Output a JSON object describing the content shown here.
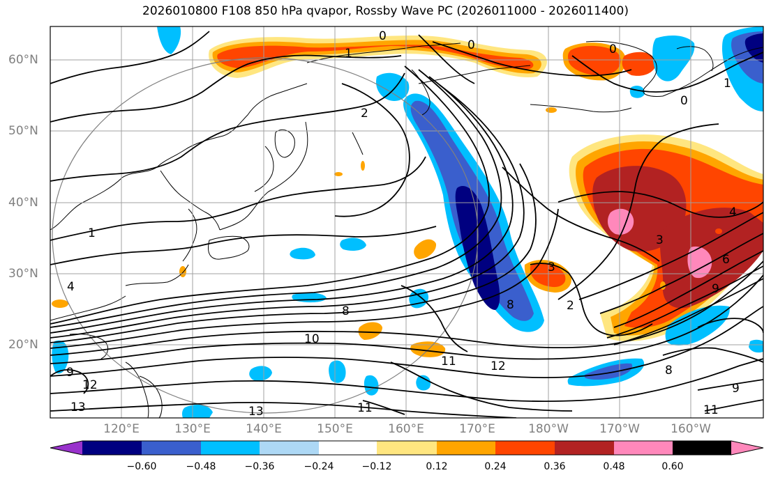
{
  "title": "2026010800 F108 850 hPa qvapor, Rossby Wave PC (2026011000 - 2026011400)",
  "latitude_labels": [
    "60°N",
    "50°N",
    "40°N",
    "30°N",
    "20°N"
  ],
  "longitude_labels": [
    "120°E",
    "130°E",
    "140°E",
    "150°E",
    "160°E",
    "170°E",
    "180°W",
    "170°W",
    "160°W"
  ],
  "contour_labels": [
    "0",
    "1",
    "0",
    "0",
    "0",
    "2",
    "1",
    "1",
    "4",
    "3",
    "4",
    "3",
    "6",
    "9",
    "2",
    "8",
    "10",
    "8",
    "9",
    "11",
    "12",
    "12",
    "13",
    "13",
    "11",
    "8",
    "9",
    "11"
  ],
  "colorbar": {
    "ticks": [
      "−0.60",
      "−0.48",
      "−0.36",
      "−0.24",
      "−0.12",
      "0.12",
      "0.24",
      "0.36",
      "0.48",
      "0.60"
    ],
    "colors": [
      "#9932cc",
      "#000080",
      "#3a5fcd",
      "#00bfff",
      "#add8f5",
      "#ffffff",
      "#ffe680",
      "#ffa500",
      "#ff4500",
      "#b22222",
      "#ff88bb"
    ]
  }
}
